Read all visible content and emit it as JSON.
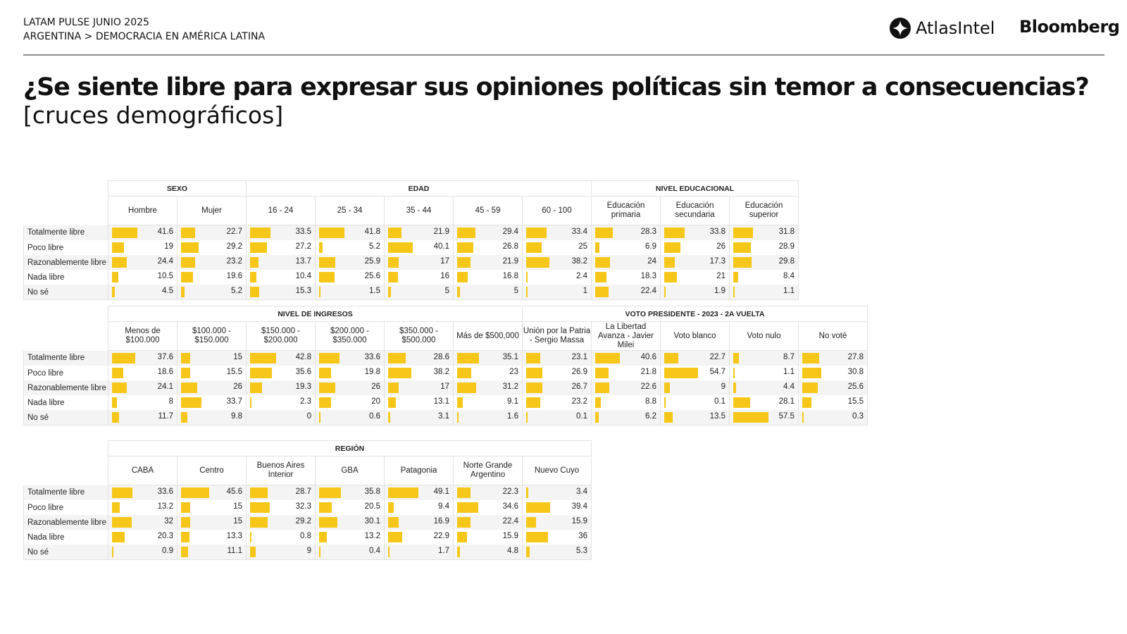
{
  "header": {
    "line1": "LATAM PULSE JUNIO 2025",
    "line2": "ARGENTINA > DEMOCRACIA EN AMÉRICA LATINA",
    "logo_atlas": "AtlasIntel",
    "logo_bloomberg": "Bloomberg"
  },
  "title": "¿Se siente libre para expresar sus opiniones políticas sin temor a consecuencias?",
  "subtitle": "[cruces demográficos]",
  "colors": {
    "bar": "#f6c719"
  },
  "chart_data": {
    "type": "table",
    "title": "¿Se siente libre para expresar sus opiniones políticas sin temor a consecuencias?",
    "rows": [
      "Totalmente libre",
      "Poco libre",
      "Razonablemente libre",
      "Nada libre",
      "No sé"
    ],
    "bar_scale_max": 57.5,
    "tables": [
      {
        "groups": [
          {
            "label": "SEXO",
            "columns": [
              {
                "label": "Hombre",
                "values": [
                  41.6,
                  19,
                  24.4,
                  10.5,
                  4.5
                ]
              },
              {
                "label": "Mujer",
                "values": [
                  22.7,
                  29.2,
                  23.2,
                  19.6,
                  5.2
                ]
              }
            ]
          },
          {
            "label": "EDAD",
            "columns": [
              {
                "label": "16 - 24",
                "values": [
                  33.5,
                  27.2,
                  13.7,
                  10.4,
                  15.3
                ]
              },
              {
                "label": "25 - 34",
                "values": [
                  41.8,
                  5.2,
                  25.9,
                  25.6,
                  1.5
                ]
              },
              {
                "label": "35 - 44",
                "values": [
                  21.9,
                  40.1,
                  17,
                  16,
                  5
                ]
              },
              {
                "label": "45 - 59",
                "values": [
                  29.4,
                  26.8,
                  21.9,
                  16.8,
                  5
                ]
              },
              {
                "label": "60 - 100",
                "values": [
                  33.4,
                  25,
                  38.2,
                  2.4,
                  1
                ]
              }
            ]
          },
          {
            "label": "NIVEL EDUCACIONAL",
            "columns": [
              {
                "label": "Educación primaria",
                "values": [
                  28.3,
                  6.9,
                  24,
                  18.3,
                  22.4
                ]
              },
              {
                "label": "Educación secundaria",
                "values": [
                  33.8,
                  26,
                  17.3,
                  21,
                  1.9
                ]
              },
              {
                "label": "Educación superior",
                "values": [
                  31.8,
                  28.9,
                  29.8,
                  8.4,
                  1.1
                ]
              }
            ]
          }
        ]
      },
      {
        "groups": [
          {
            "label": "NIVEL DE INGRESOS",
            "columns": [
              {
                "label": "Menos de $100.000",
                "values": [
                  37.6,
                  18.6,
                  24.1,
                  8,
                  11.7
                ]
              },
              {
                "label": "$100.000 - $150.000",
                "values": [
                  15,
                  15.5,
                  26,
                  33.7,
                  9.8
                ]
              },
              {
                "label": "$150.000 - $200.000",
                "values": [
                  42.8,
                  35.6,
                  19.3,
                  2.3,
                  0
                ]
              },
              {
                "label": "$200.000 - $350.000",
                "values": [
                  33.6,
                  19.8,
                  26,
                  20,
                  0.6
                ]
              },
              {
                "label": "$350.000 - $500.000",
                "values": [
                  28.6,
                  38.2,
                  17,
                  13.1,
                  3.1
                ]
              },
              {
                "label": "Más de $500,000",
                "values": [
                  35.1,
                  23,
                  31.2,
                  9.1,
                  1.6
                ]
              }
            ]
          },
          {
            "label": "VOTO PRESIDENTE - 2023 - 2A VUELTA",
            "columns": [
              {
                "label": "Unión por la Patria - Sergio Massa",
                "values": [
                  23.1,
                  26.9,
                  26.7,
                  23.2,
                  0.1
                ]
              },
              {
                "label": "La Libertad Avanza - Javier Milei",
                "values": [
                  40.6,
                  21.8,
                  22.6,
                  8.8,
                  6.2
                ]
              },
              {
                "label": "Voto blanco",
                "values": [
                  22.7,
                  54.7,
                  9,
                  0.1,
                  13.5
                ]
              },
              {
                "label": "Voto nulo",
                "values": [
                  8.7,
                  1.1,
                  4.4,
                  28.1,
                  57.5
                ]
              },
              {
                "label": "No voté",
                "values": [
                  27.8,
                  30.8,
                  25.6,
                  15.5,
                  0.3
                ]
              }
            ]
          }
        ]
      },
      {
        "groups": [
          {
            "label": "REGIÓN",
            "columns": [
              {
                "label": "CABA",
                "values": [
                  33.6,
                  13.2,
                  32,
                  20.3,
                  0.9
                ]
              },
              {
                "label": "Centro",
                "values": [
                  45.6,
                  15,
                  15,
                  13.3,
                  11.1
                ]
              },
              {
                "label": "Buenos Aires Interior",
                "values": [
                  28.7,
                  32.3,
                  29.2,
                  0.8,
                  9
                ]
              },
              {
                "label": "GBA",
                "values": [
                  35.8,
                  20.5,
                  30.1,
                  13.2,
                  0.4
                ]
              },
              {
                "label": "Patagonia",
                "values": [
                  49.1,
                  9.4,
                  16.9,
                  22.9,
                  1.7
                ]
              },
              {
                "label": "Norte Grande Argentino",
                "values": [
                  22.3,
                  34.6,
                  22.4,
                  15.9,
                  4.8
                ]
              },
              {
                "label": "Nuevo Cuyo",
                "values": [
                  3.4,
                  39.4,
                  15.9,
                  36,
                  5.3
                ]
              }
            ]
          }
        ]
      }
    ]
  }
}
